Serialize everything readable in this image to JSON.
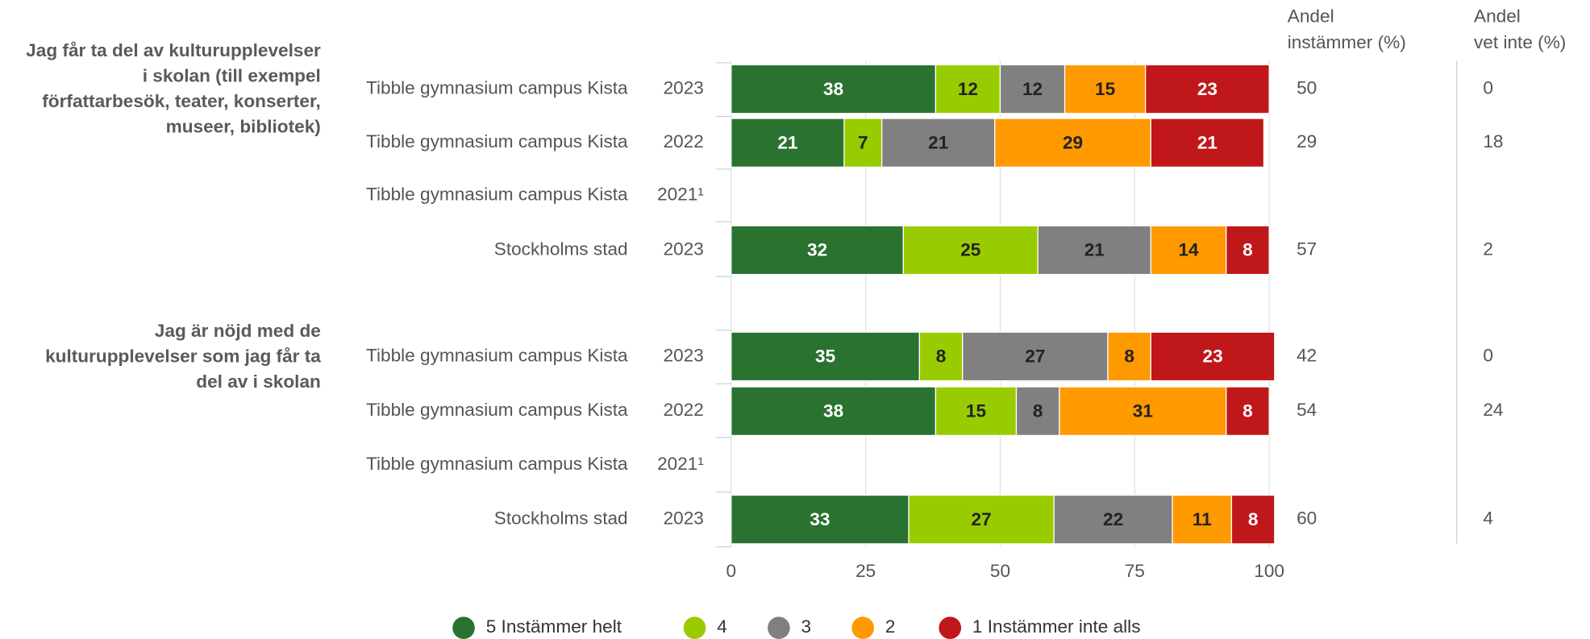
{
  "chart_data": {
    "type": "bar",
    "orientation": "horizontal",
    "stacked": true,
    "questions": [
      {
        "lines": [
          "Jag får ta del av kulturupplevelser",
          "i skolan (till exempel",
          "författarbesök, teater, konserter,",
          "museer, bibliotek)"
        ]
      },
      {
        "lines": [
          "Jag är nöjd med de",
          "kulturupplevelser som jag får ta",
          "del av i skolan"
        ]
      }
    ],
    "categories": [
      "Tibble gymnasium campus Kista",
      "Tibble gymnasium campus Kista",
      "Tibble gymnasium campus Kista",
      "Stockholms stad",
      "Tibble gymnasium campus Kista",
      "Tibble gymnasium campus Kista",
      "Tibble gymnasium campus Kista",
      "Stockholms stad"
    ],
    "years": [
      "2023",
      "2022",
      "2021¹",
      "2023",
      "2023",
      "2022",
      "2021¹",
      "2023"
    ],
    "series": [
      {
        "name": "5 Instämmer helt",
        "color": "#2a7230",
        "label_color": "#ffffff",
        "values": [
          38,
          21,
          null,
          32,
          35,
          38,
          null,
          33
        ]
      },
      {
        "name": "4",
        "color": "#99cc00",
        "label_color": "#222222",
        "values": [
          12,
          7,
          null,
          25,
          8,
          15,
          null,
          27
        ]
      },
      {
        "name": "3",
        "color": "#808080",
        "label_color": "#222222",
        "values": [
          12,
          21,
          null,
          21,
          27,
          8,
          null,
          22
        ]
      },
      {
        "name": "2",
        "color": "#ff9900",
        "label_color": "#222222",
        "values": [
          15,
          29,
          null,
          14,
          8,
          31,
          null,
          11
        ]
      },
      {
        "name": "1 Instämmer inte alls",
        "color": "#c0171a",
        "label_color": "#ffffff",
        "values": [
          23,
          21,
          null,
          8,
          23,
          8,
          null,
          8
        ]
      }
    ],
    "agree": {
      "header": [
        "Andel",
        "instämmer (%)"
      ],
      "values": [
        50,
        29,
        null,
        57,
        42,
        54,
        null,
        60
      ]
    },
    "dont_know": {
      "header": [
        "Andel",
        "vet inte (%)"
      ],
      "values": [
        0,
        18,
        null,
        2,
        0,
        24,
        null,
        4
      ]
    },
    "xlim": [
      0,
      100
    ],
    "xticks": [
      0,
      25,
      50,
      75,
      100
    ],
    "grid": true
  }
}
